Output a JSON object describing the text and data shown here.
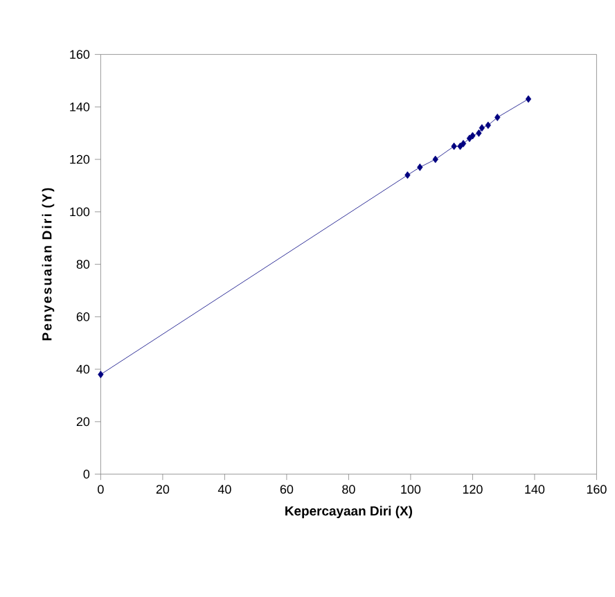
{
  "chart_data": {
    "type": "line",
    "xlabel": "Kepercayaan Diri (X)",
    "ylabel": "Penyesuaian Diri (Y)",
    "x": [
      0,
      99,
      103,
      108,
      114,
      116,
      117,
      119,
      120,
      122,
      123,
      125,
      128,
      138
    ],
    "series": [
      {
        "color": "#000080",
        "values": [
          38,
          114,
          117,
          120,
          125,
          125,
          126,
          128,
          129,
          130,
          132,
          133,
          136,
          143
        ]
      }
    ],
    "xlim": [
      0,
      160
    ],
    "ylim": [
      0,
      160
    ],
    "xticks": [
      0,
      20,
      40,
      60,
      80,
      100,
      120,
      140,
      160
    ],
    "yticks": [
      0,
      20,
      40,
      60,
      80,
      100,
      120,
      140,
      160
    ],
    "marker": "diamond",
    "line_style": "solid",
    "grid": false
  }
}
